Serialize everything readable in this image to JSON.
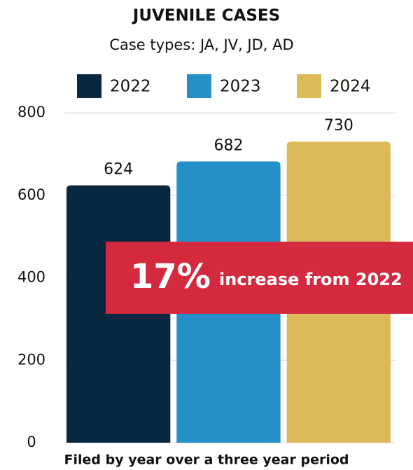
{
  "chart_data": {
    "type": "bar",
    "title": "JUVENILE CASES",
    "subtitle": "Case types: JA, JV, JD, AD",
    "categories": [
      null
    ],
    "series": [
      {
        "name": "2022",
        "color": "#0a2740",
        "values": [
          624
        ]
      },
      {
        "name": "2023",
        "color": "#2590c8",
        "values": [
          682
        ]
      },
      {
        "name": "2024",
        "color": "#dcba5a",
        "values": [
          730
        ]
      }
    ],
    "ylim": [
      0,
      800
    ],
    "yticks": [
      0,
      200,
      400,
      600,
      800
    ],
    "grid": true,
    "annotation": {
      "value_text": "17%",
      "text": "increase from 2022",
      "color": "#d42a40"
    },
    "footer": "Filed by year over a three year period"
  }
}
